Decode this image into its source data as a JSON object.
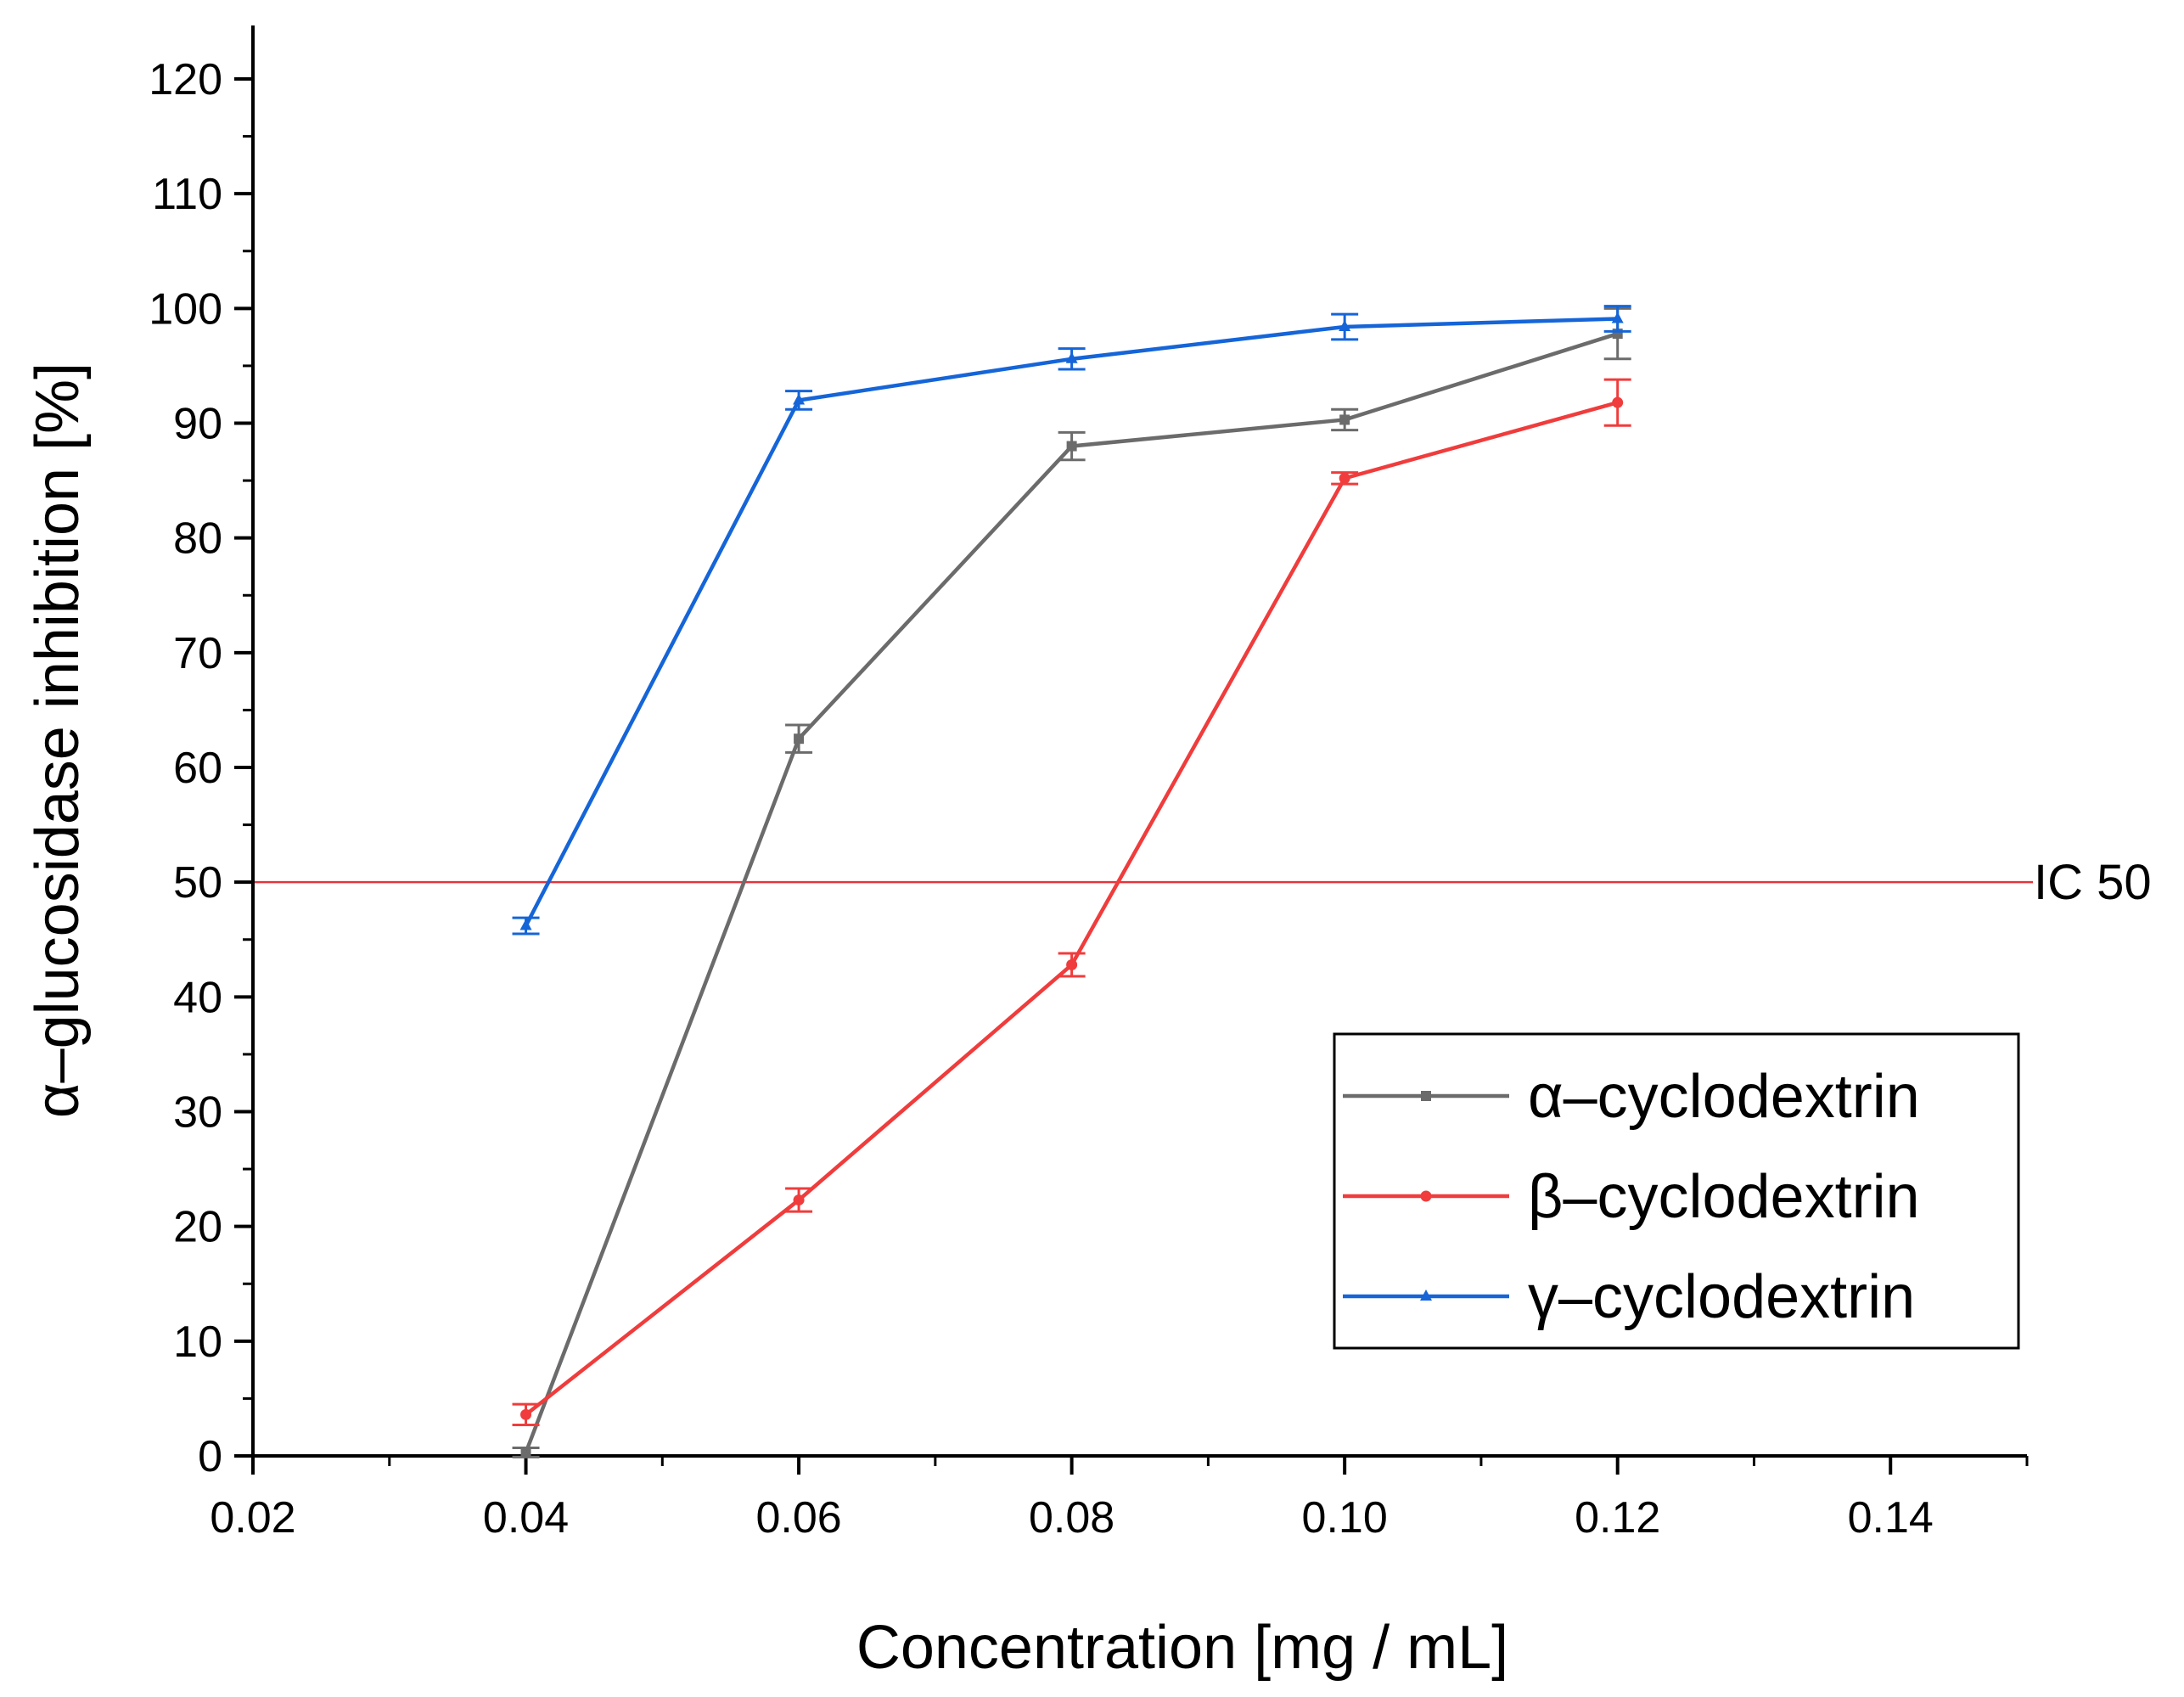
{
  "chart_data": {
    "type": "line",
    "xlabel": "Concentration [mg / mL]",
    "ylabel": "α–glucosidase inhibition [%]",
    "xlim": [
      0.02,
      0.15
    ],
    "ylim": [
      0,
      125
    ],
    "x_ticks": [
      0.02,
      0.04,
      0.06,
      0.08,
      0.1,
      0.12,
      0.14
    ],
    "x_tick_labels": [
      "0.02",
      "0.04",
      "0.06",
      "0.08",
      "0.10",
      "0.12",
      "0.14"
    ],
    "y_ticks": [
      0,
      10,
      20,
      30,
      40,
      50,
      60,
      70,
      80,
      90,
      100,
      110,
      120
    ],
    "y_tick_labels": [
      "0",
      "10",
      "20",
      "30",
      "40",
      "50",
      "60",
      "70",
      "80",
      "90",
      "100",
      "110",
      "120"
    ],
    "x": [
      0.04,
      0.06,
      0.08,
      0.1,
      0.12
    ],
    "series": [
      {
        "name": "α–cyclodextrin",
        "color": "#6b6b6b",
        "marker": "square",
        "values": [
          0.3,
          62.5,
          88.0,
          90.3,
          97.8
        ],
        "errors": [
          0.4,
          1.2,
          1.2,
          0.9,
          2.2
        ]
      },
      {
        "name": "β–cyclodextrin",
        "color": "#f03c3c",
        "marker": "circle",
        "values": [
          3.6,
          22.3,
          42.8,
          85.2,
          91.8
        ],
        "errors": [
          0.9,
          1.0,
          1.0,
          0.5,
          2.0
        ]
      },
      {
        "name": "γ–cyclodextrin",
        "color": "#1565d8",
        "marker": "triangle",
        "values": [
          46.2,
          92.0,
          95.6,
          98.4,
          99.1
        ],
        "errors": [
          0.7,
          0.8,
          0.9,
          1.1,
          1.1
        ]
      }
    ],
    "reference_line": {
      "y": 50,
      "label": "IC 50",
      "color": "#e8323c"
    },
    "legend_position": "bottom-right",
    "grid": false
  }
}
